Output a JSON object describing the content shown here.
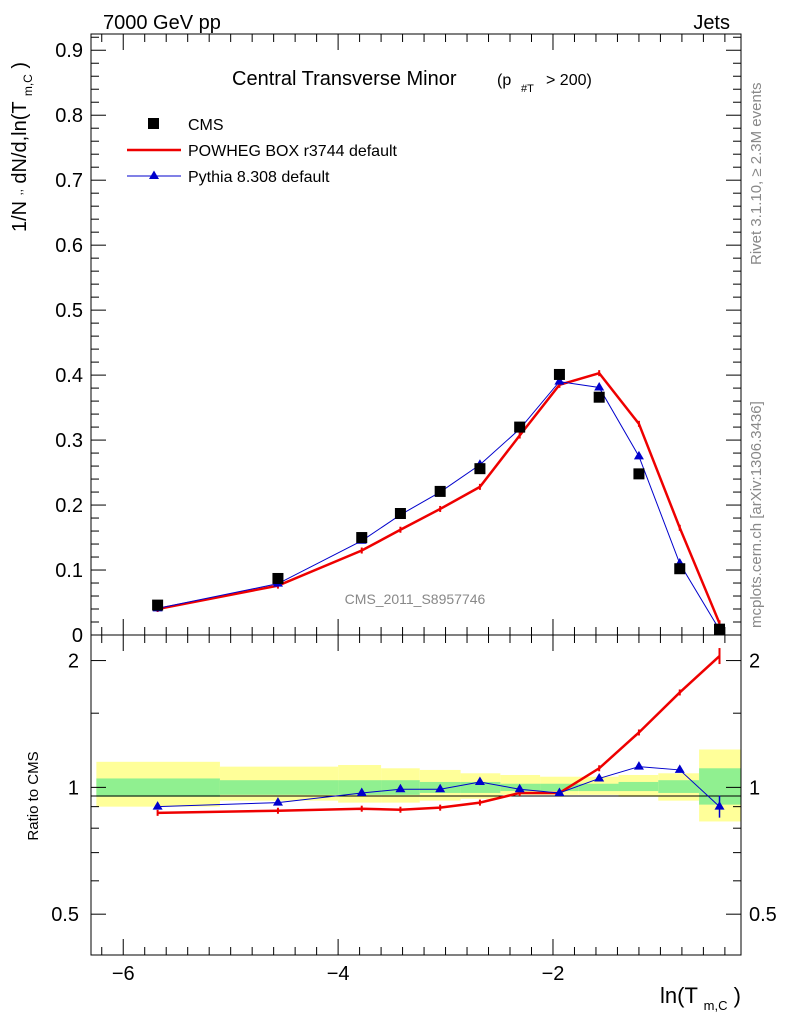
{
  "header": {
    "left": "7000 GeV pp",
    "right": "Jets"
  },
  "side_text": {
    "rivet": "Rivet 3.1.10, ≥ 2.3M events",
    "mcplots": "mcplots.cern.ch [arXiv:1306.3436]"
  },
  "colors": {
    "data": "#000000",
    "powheg": "#ee0000",
    "pythia": "#0000cc",
    "band_inner": "#90f090",
    "band_outer": "#ffff99"
  },
  "chart_data": [
    {
      "type": "scatter",
      "panel": "main",
      "title": "Central Transverse Minor",
      "title_sub": "(p",
      "title_sub_index": "#T",
      "title_sub_tail": " > 200)",
      "ylabel_main": "1/N",
      "ylabel_tail": " dN/d,ln(T",
      "ylabel_sub": "m,C",
      "ylabel_close": ")",
      "watermark": "CMS_2011_S8957746",
      "xlim": [
        -6.3,
        -0.25
      ],
      "ylim": [
        0,
        0.925
      ],
      "yticks": [
        0.1,
        0.2,
        0.3,
        0.4,
        0.5,
        0.6,
        0.7,
        0.8,
        0.9
      ],
      "ytick_labels": [
        "0.1",
        "0.2",
        "0.3",
        "0.4",
        "0.5",
        "0.6",
        "0.7",
        "0.8",
        "0.9"
      ],
      "y_zero_label": "0",
      "legend_position": "top-left",
      "series": [
        {
          "name": "CMS",
          "style": "squares",
          "x": [
            -5.68,
            -4.56,
            -3.78,
            -3.42,
            -3.05,
            -2.68,
            -2.31,
            -1.94,
            -1.57,
            -1.2,
            -0.82,
            -0.45
          ],
          "y": [
            0.046,
            0.087,
            0.15,
            0.187,
            0.221,
            0.256,
            0.32,
            0.401,
            0.366,
            0.248,
            0.102,
            0.009
          ]
        },
        {
          "name": "POWHEG BOX r3744 default",
          "style": "line",
          "x": [
            -5.68,
            -4.56,
            -3.78,
            -3.42,
            -3.05,
            -2.68,
            -2.31,
            -1.94,
            -1.57,
            -1.2,
            -0.82,
            -0.45
          ],
          "y": [
            0.04,
            0.076,
            0.13,
            0.162,
            0.194,
            0.228,
            0.307,
            0.385,
            0.403,
            0.325,
            0.165,
            0.018
          ]
        },
        {
          "name": "Pythia 8.308 default",
          "style": "line-triangles",
          "x": [
            -5.68,
            -4.56,
            -3.78,
            -3.42,
            -3.05,
            -2.68,
            -2.31,
            -1.94,
            -1.57,
            -1.2,
            -0.82,
            -0.45
          ],
          "y": [
            0.041,
            0.079,
            0.145,
            0.185,
            0.22,
            0.262,
            0.317,
            0.39,
            0.381,
            0.275,
            0.11,
            0.008
          ]
        }
      ]
    },
    {
      "type": "line",
      "panel": "ratio",
      "ylabel": "Ratio to CMS",
      "xlabel": "ln(T",
      "xlabel_sub": "m,C",
      "xlabel_close": ")",
      "xlim": [
        -6.3,
        -0.25
      ],
      "ylim": [
        0.4,
        2.3
      ],
      "y_scale": "log",
      "xticks": [
        -6,
        -4,
        -2
      ],
      "xtick_labels": [
        "−6",
        "−4",
        "−2"
      ],
      "yticks": [
        0.5,
        1,
        2
      ],
      "ytick_labels": [
        "0.5",
        "1",
        "2"
      ],
      "bands": {
        "x_edges": [
          -6.25,
          -5.1,
          -4.0,
          -3.6,
          -3.24,
          -2.86,
          -2.49,
          -2.12,
          -1.76,
          -1.39,
          -1.02,
          -0.64,
          -0.25
        ],
        "inner_lo": [
          0.95,
          0.96,
          0.96,
          0.96,
          0.97,
          0.97,
          0.98,
          0.98,
          0.98,
          0.98,
          0.97,
          0.91
        ],
        "inner_hi": [
          1.05,
          1.04,
          1.04,
          1.04,
          1.03,
          1.03,
          1.02,
          1.02,
          1.02,
          1.03,
          1.04,
          1.11
        ],
        "outer_lo": [
          0.9,
          0.93,
          0.92,
          0.92,
          0.93,
          0.94,
          0.96,
          0.96,
          0.96,
          0.95,
          0.93,
          0.83
        ],
        "outer_hi": [
          1.15,
          1.12,
          1.13,
          1.11,
          1.1,
          1.08,
          1.07,
          1.06,
          1.06,
          1.07,
          1.08,
          1.23
        ]
      },
      "series": [
        {
          "name": "POWHEG BOX r3744 default",
          "x": [
            -5.68,
            -4.56,
            -3.78,
            -3.42,
            -3.05,
            -2.68,
            -2.31,
            -1.94,
            -1.57,
            -1.2,
            -0.82,
            -0.45
          ],
          "y": [
            0.87,
            0.88,
            0.89,
            0.885,
            0.895,
            0.92,
            0.97,
            0.97,
            1.11,
            1.35,
            1.68,
            2.05
          ]
        },
        {
          "name": "Pythia 8.308 default",
          "x": [
            -5.68,
            -4.56,
            -3.78,
            -3.42,
            -3.05,
            -2.68,
            -2.31,
            -1.94,
            -1.57,
            -1.2,
            -0.82,
            -0.45
          ],
          "y": [
            0.9,
            0.92,
            0.97,
            0.99,
            0.99,
            1.03,
            0.99,
            0.97,
            1.05,
            1.12,
            1.1,
            0.9
          ]
        }
      ]
    }
  ]
}
